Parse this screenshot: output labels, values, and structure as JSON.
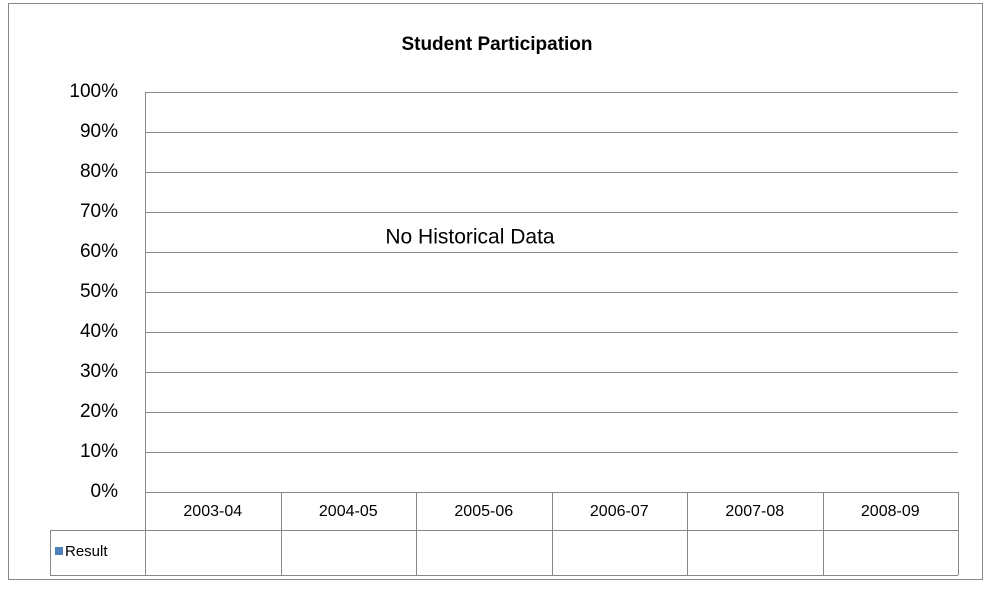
{
  "chart_data": {
    "type": "bar",
    "title": "Student Participation",
    "annotation": "No Historical Data",
    "categories": [
      "2003-04",
      "2004-05",
      "2005-06",
      "2006-07",
      "2007-08",
      "2008-09"
    ],
    "series": [
      {
        "name": "Result",
        "color": "#4f81bd",
        "values": [
          null,
          null,
          null,
          null,
          null,
          null
        ]
      }
    ],
    "ylim": [
      0,
      100
    ],
    "yticks": [
      {
        "value": 0,
        "label": "0%"
      },
      {
        "value": 10,
        "label": "10%"
      },
      {
        "value": 20,
        "label": "20%"
      },
      {
        "value": 30,
        "label": "30%"
      },
      {
        "value": 40,
        "label": "40%"
      },
      {
        "value": 50,
        "label": "50%"
      },
      {
        "value": 60,
        "label": "60%"
      },
      {
        "value": 70,
        "label": "70%"
      },
      {
        "value": 80,
        "label": "80%"
      },
      {
        "value": 90,
        "label": "90%"
      },
      {
        "value": 100,
        "label": "100%"
      }
    ],
    "grid": true,
    "data_table": true
  }
}
